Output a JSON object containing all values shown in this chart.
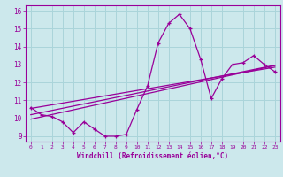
{
  "x": [
    0,
    1,
    2,
    3,
    4,
    5,
    6,
    7,
    8,
    9,
    10,
    11,
    12,
    13,
    14,
    15,
    16,
    17,
    18,
    19,
    20,
    21,
    22,
    23
  ],
  "y": [
    10.6,
    10.2,
    10.1,
    9.8,
    9.2,
    9.8,
    9.4,
    9.0,
    9.0,
    9.1,
    10.5,
    11.8,
    14.2,
    15.3,
    15.8,
    15.0,
    13.3,
    11.1,
    12.2,
    13.0,
    13.1,
    13.5,
    13.0,
    12.6
  ],
  "trend1": [
    9.95,
    10.08,
    10.21,
    10.34,
    10.47,
    10.6,
    10.73,
    10.86,
    10.99,
    11.12,
    11.25,
    11.38,
    11.51,
    11.64,
    11.77,
    11.9,
    12.03,
    12.16,
    12.29,
    12.42,
    12.55,
    12.68,
    12.81,
    12.94
  ],
  "trend2": [
    10.2,
    10.32,
    10.44,
    10.56,
    10.68,
    10.8,
    10.92,
    11.04,
    11.16,
    11.28,
    11.4,
    11.52,
    11.64,
    11.76,
    11.88,
    12.0,
    12.12,
    12.24,
    12.36,
    12.48,
    12.6,
    12.72,
    12.84,
    12.96
  ],
  "trend3": [
    10.55,
    10.65,
    10.75,
    10.85,
    10.95,
    11.05,
    11.15,
    11.25,
    11.35,
    11.45,
    11.55,
    11.65,
    11.75,
    11.85,
    11.95,
    12.05,
    12.15,
    12.25,
    12.35,
    12.45,
    12.55,
    12.65,
    12.75,
    12.85
  ],
  "line_color": "#990099",
  "bg_color": "#cce8ec",
  "grid_color": "#aad4da",
  "xlabel": "Windchill (Refroidissement éolien,°C)",
  "xlim": [
    -0.5,
    23.5
  ],
  "ylim": [
    8.7,
    16.3
  ],
  "yticks": [
    9,
    10,
    11,
    12,
    13,
    14,
    15,
    16
  ],
  "xticks": [
    0,
    1,
    2,
    3,
    4,
    5,
    6,
    7,
    8,
    9,
    10,
    11,
    12,
    13,
    14,
    15,
    16,
    17,
    18,
    19,
    20,
    21,
    22,
    23
  ]
}
